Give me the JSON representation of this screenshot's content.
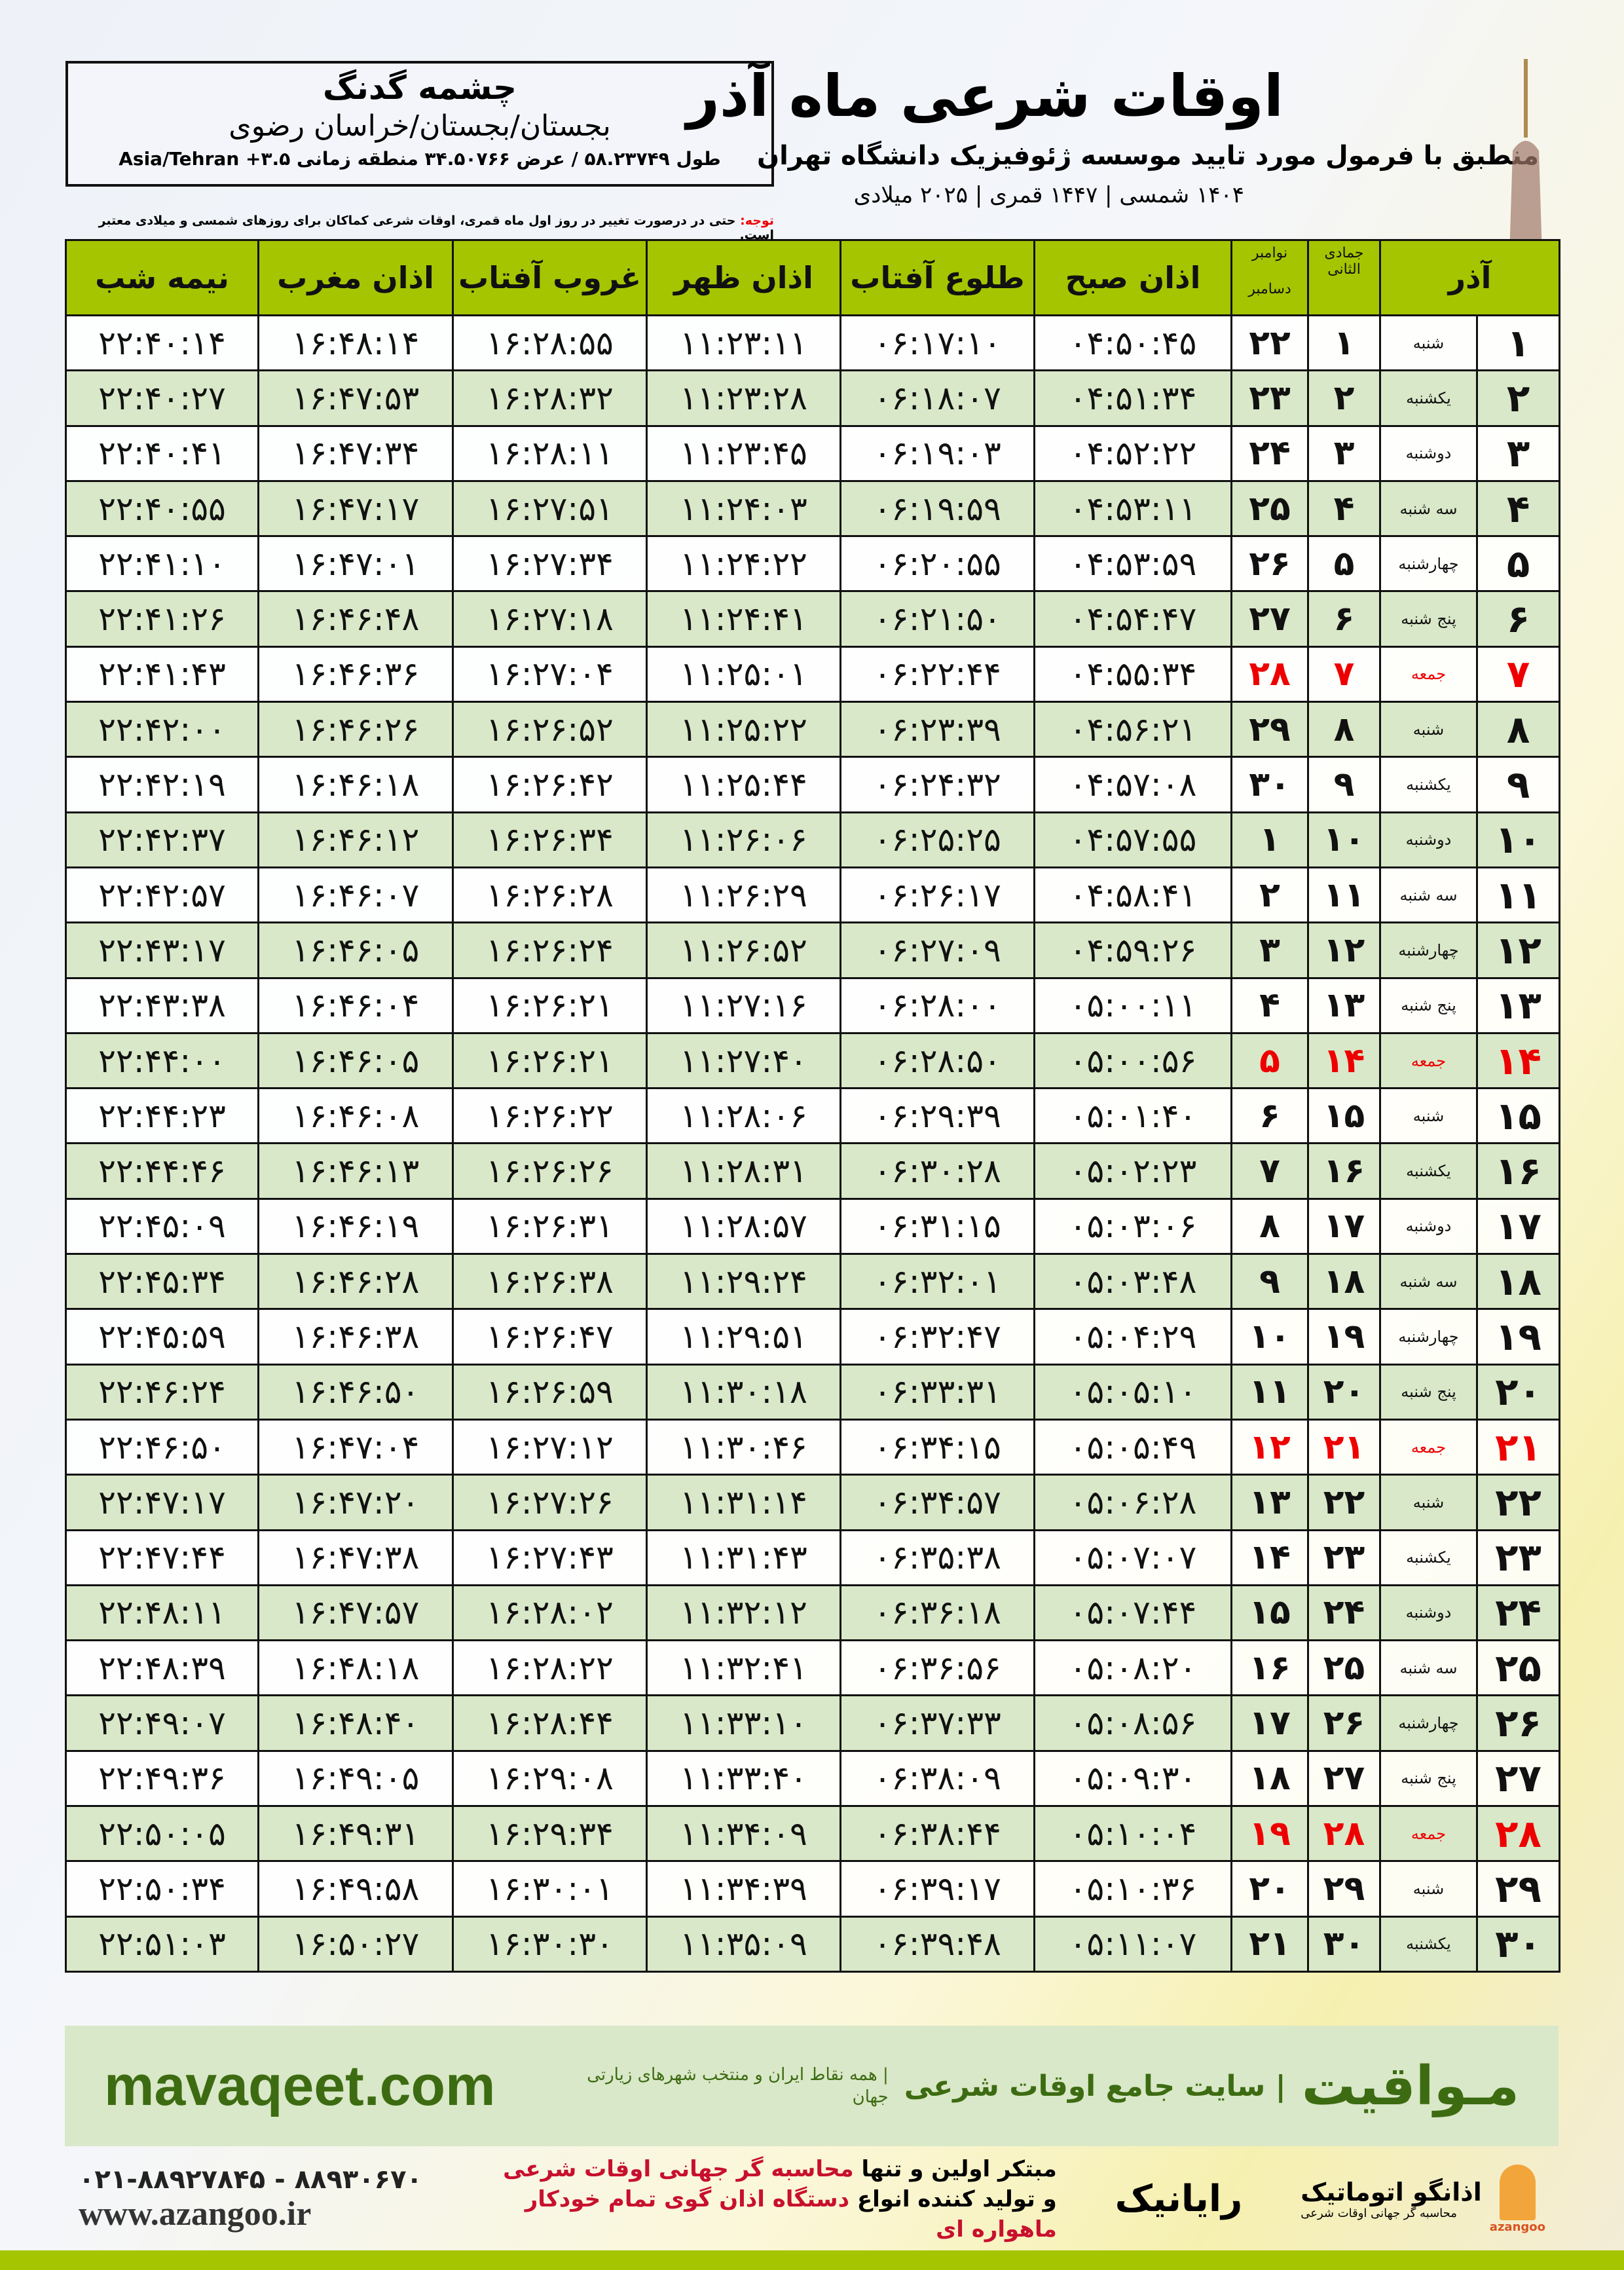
{
  "location": {
    "city": "چشمه گدنگ",
    "region": "بجستان/بجستان/خراسان رضوی",
    "coords": "طول ۵۸.۲۳۷۴۹ / عرض ۳۴.۵۰۷۶۶ منطقه زمانی ۳.۵+ Asia/Tehran"
  },
  "note": {
    "label": "توجه:",
    "text": " حتی در درصورت تغییر در روز اول ماه قمری، اوقات شرعی کماکان برای روزهای شمسی و میلادی معتبر است."
  },
  "header": {
    "title": "اوقات شرعی ماه آذر",
    "subtitle": "منطبق با فرمول مورد تایید موسسه ژئوفیزیک دانشگاه تهران",
    "years": "۱۴۰۴ شمسی | ۱۴۴۷ قمری | ۲۰۲۵ میلادی"
  },
  "columns": {
    "day": "آذر",
    "lunar": "جمادی الثانی",
    "greg_top": "نوامبر",
    "greg_bottom": "دسامبر",
    "fajr": "اذان صبح",
    "sunrise": "طلوع آفتاب",
    "dhuhr": "اذان ظهر",
    "sunset": "غروب آفتاب",
    "maghrib": "اذان مغرب",
    "midnight": "نیمه شب"
  },
  "colors": {
    "header_green": "#a5c500",
    "row_green": "#d9e8c8",
    "friday_red": "#e00000",
    "brand_green": "#3d6b12"
  },
  "rows": [
    {
      "day": "۱",
      "weekday": "شنبه",
      "lunar": "۱",
      "greg": "۲۲",
      "fajr": "۰۴:۵۰:۴۵",
      "sunrise": "۰۶:۱۷:۱۰",
      "dhuhr": "۱۱:۲۳:۱۱",
      "sunset": "۱۶:۲۸:۵۵",
      "maghrib": "۱۶:۴۸:۱۴",
      "midnight": "۲۲:۴۰:۱۴"
    },
    {
      "day": "۲",
      "weekday": "یکشنبه",
      "lunar": "۲",
      "greg": "۲۳",
      "fajr": "۰۴:۵۱:۳۴",
      "sunrise": "۰۶:۱۸:۰۷",
      "dhuhr": "۱۱:۲۳:۲۸",
      "sunset": "۱۶:۲۸:۳۲",
      "maghrib": "۱۶:۴۷:۵۳",
      "midnight": "۲۲:۴۰:۲۷"
    },
    {
      "day": "۳",
      "weekday": "دوشنبه",
      "lunar": "۳",
      "greg": "۲۴",
      "fajr": "۰۴:۵۲:۲۲",
      "sunrise": "۰۶:۱۹:۰۳",
      "dhuhr": "۱۱:۲۳:۴۵",
      "sunset": "۱۶:۲۸:۱۱",
      "maghrib": "۱۶:۴۷:۳۴",
      "midnight": "۲۲:۴۰:۴۱"
    },
    {
      "day": "۴",
      "weekday": "سه شنبه",
      "lunar": "۴",
      "greg": "۲۵",
      "fajr": "۰۴:۵۳:۱۱",
      "sunrise": "۰۶:۱۹:۵۹",
      "dhuhr": "۱۱:۲۴:۰۳",
      "sunset": "۱۶:۲۷:۵۱",
      "maghrib": "۱۶:۴۷:۱۷",
      "midnight": "۲۲:۴۰:۵۵"
    },
    {
      "day": "۵",
      "weekday": "چهارشنبه",
      "lunar": "۵",
      "greg": "۲۶",
      "fajr": "۰۴:۵۳:۵۹",
      "sunrise": "۰۶:۲۰:۵۵",
      "dhuhr": "۱۱:۲۴:۲۲",
      "sunset": "۱۶:۲۷:۳۴",
      "maghrib": "۱۶:۴۷:۰۱",
      "midnight": "۲۲:۴۱:۱۰"
    },
    {
      "day": "۶",
      "weekday": "پنج شنبه",
      "lunar": "۶",
      "greg": "۲۷",
      "fajr": "۰۴:۵۴:۴۷",
      "sunrise": "۰۶:۲۱:۵۰",
      "dhuhr": "۱۱:۲۴:۴۱",
      "sunset": "۱۶:۲۷:۱۸",
      "maghrib": "۱۶:۴۶:۴۸",
      "midnight": "۲۲:۴۱:۲۶"
    },
    {
      "day": "۷",
      "weekday": "جمعه",
      "lunar": "۷",
      "greg": "۲۸",
      "fajr": "۰۴:۵۵:۳۴",
      "sunrise": "۰۶:۲۲:۴۴",
      "dhuhr": "۱۱:۲۵:۰۱",
      "sunset": "۱۶:۲۷:۰۴",
      "maghrib": "۱۶:۴۶:۳۶",
      "midnight": "۲۲:۴۱:۴۳",
      "friday": true
    },
    {
      "day": "۸",
      "weekday": "شنبه",
      "lunar": "۸",
      "greg": "۲۹",
      "fajr": "۰۴:۵۶:۲۱",
      "sunrise": "۰۶:۲۳:۳۹",
      "dhuhr": "۱۱:۲۵:۲۲",
      "sunset": "۱۶:۲۶:۵۲",
      "maghrib": "۱۶:۴۶:۲۶",
      "midnight": "۲۲:۴۲:۰۰"
    },
    {
      "day": "۹",
      "weekday": "یکشنبه",
      "lunar": "۹",
      "greg": "۳۰",
      "fajr": "۰۴:۵۷:۰۸",
      "sunrise": "۰۶:۲۴:۳۲",
      "dhuhr": "۱۱:۲۵:۴۴",
      "sunset": "۱۶:۲۶:۴۲",
      "maghrib": "۱۶:۴۶:۱۸",
      "midnight": "۲۲:۴۲:۱۹"
    },
    {
      "day": "۱۰",
      "weekday": "دوشنبه",
      "lunar": "۱۰",
      "greg": "۱",
      "fajr": "۰۴:۵۷:۵۵",
      "sunrise": "۰۶:۲۵:۲۵",
      "dhuhr": "۱۱:۲۶:۰۶",
      "sunset": "۱۶:۲۶:۳۴",
      "maghrib": "۱۶:۴۶:۱۲",
      "midnight": "۲۲:۴۲:۳۷"
    },
    {
      "day": "۱۱",
      "weekday": "سه شنبه",
      "lunar": "۱۱",
      "greg": "۲",
      "fajr": "۰۴:۵۸:۴۱",
      "sunrise": "۰۶:۲۶:۱۷",
      "dhuhr": "۱۱:۲۶:۲۹",
      "sunset": "۱۶:۲۶:۲۸",
      "maghrib": "۱۶:۴۶:۰۷",
      "midnight": "۲۲:۴۲:۵۷"
    },
    {
      "day": "۱۲",
      "weekday": "چهارشنبه",
      "lunar": "۱۲",
      "greg": "۳",
      "fajr": "۰۴:۵۹:۲۶",
      "sunrise": "۰۶:۲۷:۰۹",
      "dhuhr": "۱۱:۲۶:۵۲",
      "sunset": "۱۶:۲۶:۲۴",
      "maghrib": "۱۶:۴۶:۰۵",
      "midnight": "۲۲:۴۳:۱۷"
    },
    {
      "day": "۱۳",
      "weekday": "پنج شنبه",
      "lunar": "۱۳",
      "greg": "۴",
      "fajr": "۰۵:۰۰:۱۱",
      "sunrise": "۰۶:۲۸:۰۰",
      "dhuhr": "۱۱:۲۷:۱۶",
      "sunset": "۱۶:۲۶:۲۱",
      "maghrib": "۱۶:۴۶:۰۴",
      "midnight": "۲۲:۴۳:۳۸"
    },
    {
      "day": "۱۴",
      "weekday": "جمعه",
      "lunar": "۱۴",
      "greg": "۵",
      "fajr": "۰۵:۰۰:۵۶",
      "sunrise": "۰۶:۲۸:۵۰",
      "dhuhr": "۱۱:۲۷:۴۰",
      "sunset": "۱۶:۲۶:۲۱",
      "maghrib": "۱۶:۴۶:۰۵",
      "midnight": "۲۲:۴۴:۰۰",
      "friday": true
    },
    {
      "day": "۱۵",
      "weekday": "شنبه",
      "lunar": "۱۵",
      "greg": "۶",
      "fajr": "۰۵:۰۱:۴۰",
      "sunrise": "۰۶:۲۹:۳۹",
      "dhuhr": "۱۱:۲۸:۰۶",
      "sunset": "۱۶:۲۶:۲۲",
      "maghrib": "۱۶:۴۶:۰۸",
      "midnight": "۲۲:۴۴:۲۳"
    },
    {
      "day": "۱۶",
      "weekday": "یکشنبه",
      "lunar": "۱۶",
      "greg": "۷",
      "fajr": "۰۵:۰۲:۲۳",
      "sunrise": "۰۶:۳۰:۲۸",
      "dhuhr": "۱۱:۲۸:۳۱",
      "sunset": "۱۶:۲۶:۲۶",
      "maghrib": "۱۶:۴۶:۱۳",
      "midnight": "۲۲:۴۴:۴۶"
    },
    {
      "day": "۱۷",
      "weekday": "دوشنبه",
      "lunar": "۱۷",
      "greg": "۸",
      "fajr": "۰۵:۰۳:۰۶",
      "sunrise": "۰۶:۳۱:۱۵",
      "dhuhr": "۱۱:۲۸:۵۷",
      "sunset": "۱۶:۲۶:۳۱",
      "maghrib": "۱۶:۴۶:۱۹",
      "midnight": "۲۲:۴۵:۰۹"
    },
    {
      "day": "۱۸",
      "weekday": "سه شنبه",
      "lunar": "۱۸",
      "greg": "۹",
      "fajr": "۰۵:۰۳:۴۸",
      "sunrise": "۰۶:۳۲:۰۱",
      "dhuhr": "۱۱:۲۹:۲۴",
      "sunset": "۱۶:۲۶:۳۸",
      "maghrib": "۱۶:۴۶:۲۸",
      "midnight": "۲۲:۴۵:۳۴"
    },
    {
      "day": "۱۹",
      "weekday": "چهارشنبه",
      "lunar": "۱۹",
      "greg": "۱۰",
      "fajr": "۰۵:۰۴:۲۹",
      "sunrise": "۰۶:۳۲:۴۷",
      "dhuhr": "۱۱:۲۹:۵۱",
      "sunset": "۱۶:۲۶:۴۷",
      "maghrib": "۱۶:۴۶:۳۸",
      "midnight": "۲۲:۴۵:۵۹"
    },
    {
      "day": "۲۰",
      "weekday": "پنج شنبه",
      "lunar": "۲۰",
      "greg": "۱۱",
      "fajr": "۰۵:۰۵:۱۰",
      "sunrise": "۰۶:۳۳:۳۱",
      "dhuhr": "۱۱:۳۰:۱۸",
      "sunset": "۱۶:۲۶:۵۹",
      "maghrib": "۱۶:۴۶:۵۰",
      "midnight": "۲۲:۴۶:۲۴"
    },
    {
      "day": "۲۱",
      "weekday": "جمعه",
      "lunar": "۲۱",
      "greg": "۱۲",
      "fajr": "۰۵:۰۵:۴۹",
      "sunrise": "۰۶:۳۴:۱۵",
      "dhuhr": "۱۱:۳۰:۴۶",
      "sunset": "۱۶:۲۷:۱۲",
      "maghrib": "۱۶:۴۷:۰۴",
      "midnight": "۲۲:۴۶:۵۰",
      "friday": true
    },
    {
      "day": "۲۲",
      "weekday": "شنبه",
      "lunar": "۲۲",
      "greg": "۱۳",
      "fajr": "۰۵:۰۶:۲۸",
      "sunrise": "۰۶:۳۴:۵۷",
      "dhuhr": "۱۱:۳۱:۱۴",
      "sunset": "۱۶:۲۷:۲۶",
      "maghrib": "۱۶:۴۷:۲۰",
      "midnight": "۲۲:۴۷:۱۷"
    },
    {
      "day": "۲۳",
      "weekday": "یکشنبه",
      "lunar": "۲۳",
      "greg": "۱۴",
      "fajr": "۰۵:۰۷:۰۷",
      "sunrise": "۰۶:۳۵:۳۸",
      "dhuhr": "۱۱:۳۱:۴۳",
      "sunset": "۱۶:۲۷:۴۳",
      "maghrib": "۱۶:۴۷:۳۸",
      "midnight": "۲۲:۴۷:۴۴"
    },
    {
      "day": "۲۴",
      "weekday": "دوشنبه",
      "lunar": "۲۴",
      "greg": "۱۵",
      "fajr": "۰۵:۰۷:۴۴",
      "sunrise": "۰۶:۳۶:۱۸",
      "dhuhr": "۱۱:۳۲:۱۲",
      "sunset": "۱۶:۲۸:۰۲",
      "maghrib": "۱۶:۴۷:۵۷",
      "midnight": "۲۲:۴۸:۱۱"
    },
    {
      "day": "۲۵",
      "weekday": "سه شنبه",
      "lunar": "۲۵",
      "greg": "۱۶",
      "fajr": "۰۵:۰۸:۲۰",
      "sunrise": "۰۶:۳۶:۵۶",
      "dhuhr": "۱۱:۳۲:۴۱",
      "sunset": "۱۶:۲۸:۲۲",
      "maghrib": "۱۶:۴۸:۱۸",
      "midnight": "۲۲:۴۸:۳۹"
    },
    {
      "day": "۲۶",
      "weekday": "چهارشنبه",
      "lunar": "۲۶",
      "greg": "۱۷",
      "fajr": "۰۵:۰۸:۵۶",
      "sunrise": "۰۶:۳۷:۳۳",
      "dhuhr": "۱۱:۳۳:۱۰",
      "sunset": "۱۶:۲۸:۴۴",
      "maghrib": "۱۶:۴۸:۴۰",
      "midnight": "۲۲:۴۹:۰۷"
    },
    {
      "day": "۲۷",
      "weekday": "پنج شنبه",
      "lunar": "۲۷",
      "greg": "۱۸",
      "fajr": "۰۵:۰۹:۳۰",
      "sunrise": "۰۶:۳۸:۰۹",
      "dhuhr": "۱۱:۳۳:۴۰",
      "sunset": "۱۶:۲۹:۰۸",
      "maghrib": "۱۶:۴۹:۰۵",
      "midnight": "۲۲:۴۹:۳۶"
    },
    {
      "day": "۲۸",
      "weekday": "جمعه",
      "lunar": "۲۸",
      "greg": "۱۹",
      "fajr": "۰۵:۱۰:۰۴",
      "sunrise": "۰۶:۳۸:۴۴",
      "dhuhr": "۱۱:۳۴:۰۹",
      "sunset": "۱۶:۲۹:۳۴",
      "maghrib": "۱۶:۴۹:۳۱",
      "midnight": "۲۲:۵۰:۰۵",
      "friday": true
    },
    {
      "day": "۲۹",
      "weekday": "شنبه",
      "lunar": "۲۹",
      "greg": "۲۰",
      "fajr": "۰۵:۱۰:۳۶",
      "sunrise": "۰۶:۳۹:۱۷",
      "dhuhr": "۱۱:۳۴:۳۹",
      "sunset": "۱۶:۳۰:۰۱",
      "maghrib": "۱۶:۴۹:۵۸",
      "midnight": "۲۲:۵۰:۳۴"
    },
    {
      "day": "۳۰",
      "weekday": "یکشنبه",
      "lunar": "۳۰",
      "greg": "۲۱",
      "fajr": "۰۵:۱۱:۰۷",
      "sunrise": "۰۶:۳۹:۴۸",
      "dhuhr": "۱۱:۳۵:۰۹",
      "sunset": "۱۶:۳۰:۳۰",
      "maghrib": "۱۶:۵۰:۲۷",
      "midnight": "۲۲:۵۱:۰۳"
    }
  ],
  "footer": {
    "site": "mavaqeet.com",
    "brand": "مـواقیت",
    "brand_sub": "| سایت جامع اوقات شرعی",
    "brand_sub2": "| همه نقاط ایران و منتخب شهرهای زیارتی جهان",
    "phone": "۰۲۱-۸۸۹۲۷۸۴۵ - ۸۸۹۳۰۶۷۰",
    "www": "www.azangoo.ir",
    "promo1a": "مبتکر اولین و تنها ",
    "promo1b": "محاسبه گر جهانی اوقات شرعی",
    "promo2a": "و تولید کننده انواع ",
    "promo2b": "دستگاه اذان گوی تمام خودکار ماهواره ای",
    "rayanik": "رایانیک",
    "azangoo": "اذانگو اتوماتیک",
    "azangoo_sub": "محاسبه گر جهانی اوقات شرعی",
    "azangoo_en": "azangoo"
  }
}
